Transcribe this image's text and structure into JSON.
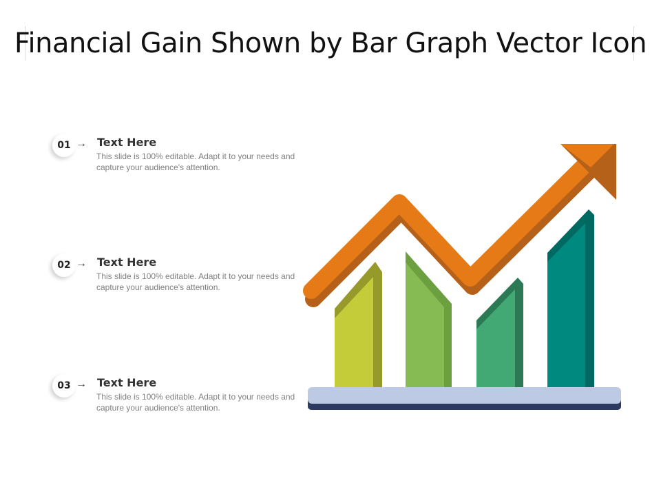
{
  "title": "Financial Gain Shown by Bar Graph Vector Icon",
  "items": [
    {
      "number": "01",
      "title": "Text Here",
      "description": "This slide is 100% editable. Adapt it to your needs and capture your audience's attention."
    },
    {
      "number": "02",
      "title": "Text Here",
      "description": "This slide is 100% editable. Adapt it to your needs and capture your audience's attention."
    },
    {
      "number": "03",
      "title": "Text Here",
      "description": "This slide is 100% editable. Adapt it to your needs and capture your audience's attention."
    }
  ],
  "icons": {
    "arrow": "right-arrow-icon",
    "graphic": "rising-bar-graph-with-trend-arrow-icon"
  },
  "colors": {
    "bar_1": "#c5cc3a",
    "bar_2": "#86bb54",
    "bar_3": "#42a874",
    "bar_4": "#00897e",
    "trend_arrow": "#e57a17",
    "base_top": "#bccae3",
    "base_bottom": "#2b3a5e"
  }
}
